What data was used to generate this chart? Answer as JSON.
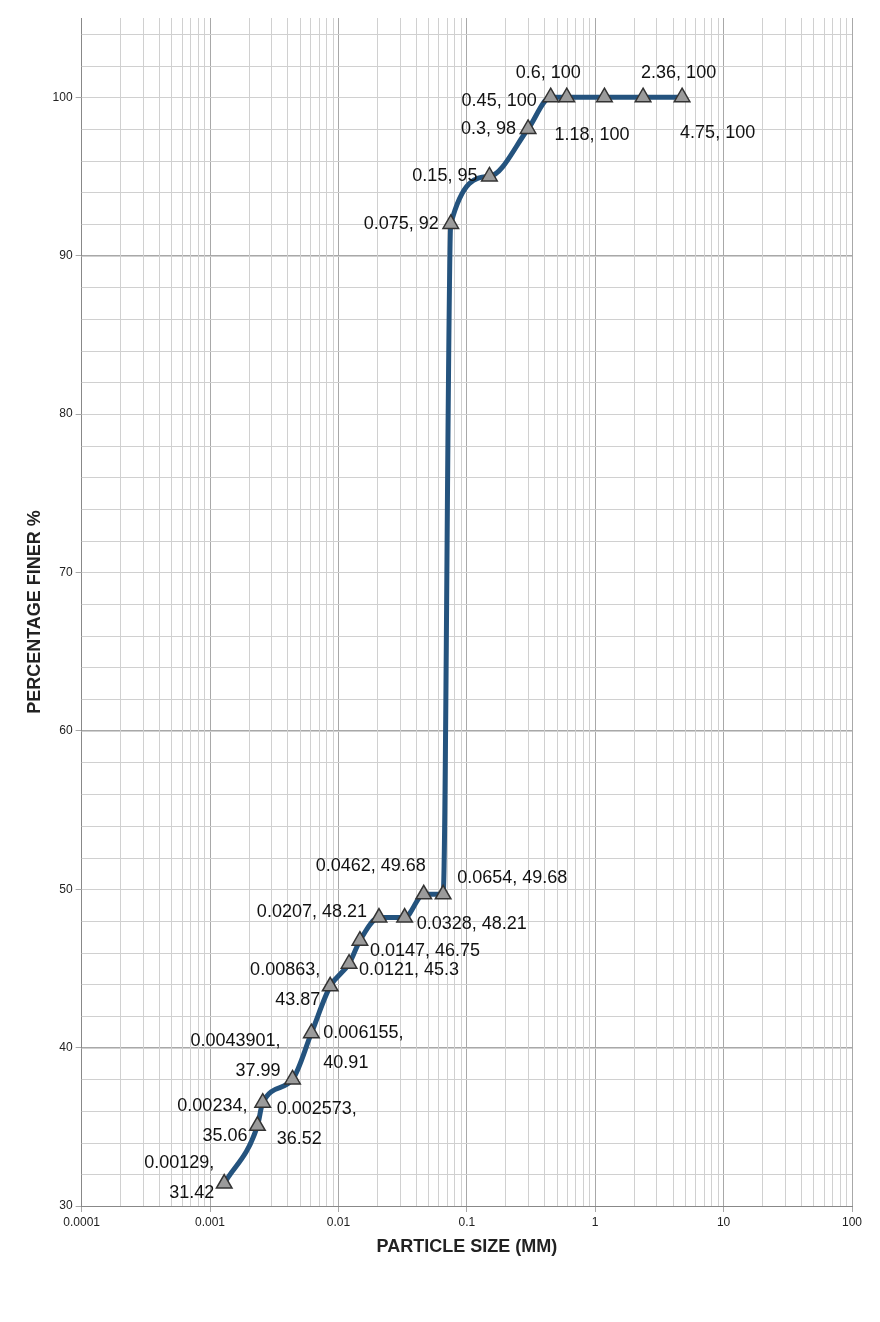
{
  "chart_data": {
    "type": "line",
    "xlabel": "PARTICLE SIZE (MM)",
    "ylabel": "PERCENTAGE FINER %",
    "log": "x",
    "grid": true,
    "marker": "triangle",
    "line_style": "solid",
    "xlim": [
      0.0001,
      100
    ],
    "xticks": [
      0.0001,
      0.001,
      0.01,
      0.1,
      1,
      10,
      100
    ],
    "ylim": [
      30,
      105
    ],
    "yticks": [
      30,
      40,
      50,
      60,
      70,
      80,
      90,
      100
    ],
    "series": [
      {
        "color": "#24537e",
        "x": [
          0.00129,
          0.00234,
          0.002573,
          0.0043901,
          0.006155,
          0.00863,
          0.0121,
          0.0147,
          0.0207,
          0.0328,
          0.0462,
          0.0654,
          0.075,
          0.15,
          0.3,
          0.45,
          0.6,
          1.18,
          2.36,
          4.75
        ],
        "values": [
          31.42,
          35.06,
          36.52,
          37.99,
          40.91,
          43.87,
          45.3,
          46.75,
          48.21,
          48.21,
          49.68,
          49.68,
          92,
          95,
          98,
          100,
          100,
          100,
          100,
          100
        ],
        "value_labels": [
          "0.00129, 31.42",
          "0.00234, 35.06",
          "0.002573, 36.52",
          "0.0043901, 37.99",
          "0.006155, 40.91",
          "0.00863, 43.87",
          "0.0121, 45.3",
          "0.0147, 46.75",
          "0.0207, 48.21",
          "0.0328, 48.21",
          "0.0462, 49.68",
          "0.0654, 49.68",
          "0.075, 92",
          "0.15, 95",
          "0.3, 98",
          "0.45, 100",
          "0.6, 100",
          "1.18, 100",
          "2.36, 100",
          "4.75, 100"
        ]
      }
    ]
  }
}
